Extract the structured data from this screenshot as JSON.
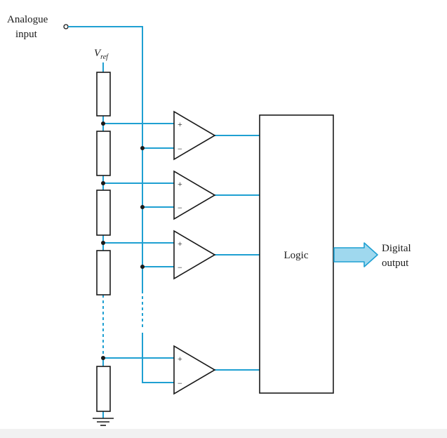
{
  "colors": {
    "wire": "#1fa0d2",
    "arrow_fill": "#9fd8ee",
    "arrow_stroke": "#1fa0d2",
    "stroke": "#1a1a1a"
  },
  "labels": {
    "input_line1": "Analogue",
    "input_line2": "input",
    "vref_main": "V",
    "vref_sub": "ref",
    "logic": "Logic",
    "output_line1": "Digital",
    "output_line2": "output",
    "plus": "+",
    "minus": "−"
  }
}
